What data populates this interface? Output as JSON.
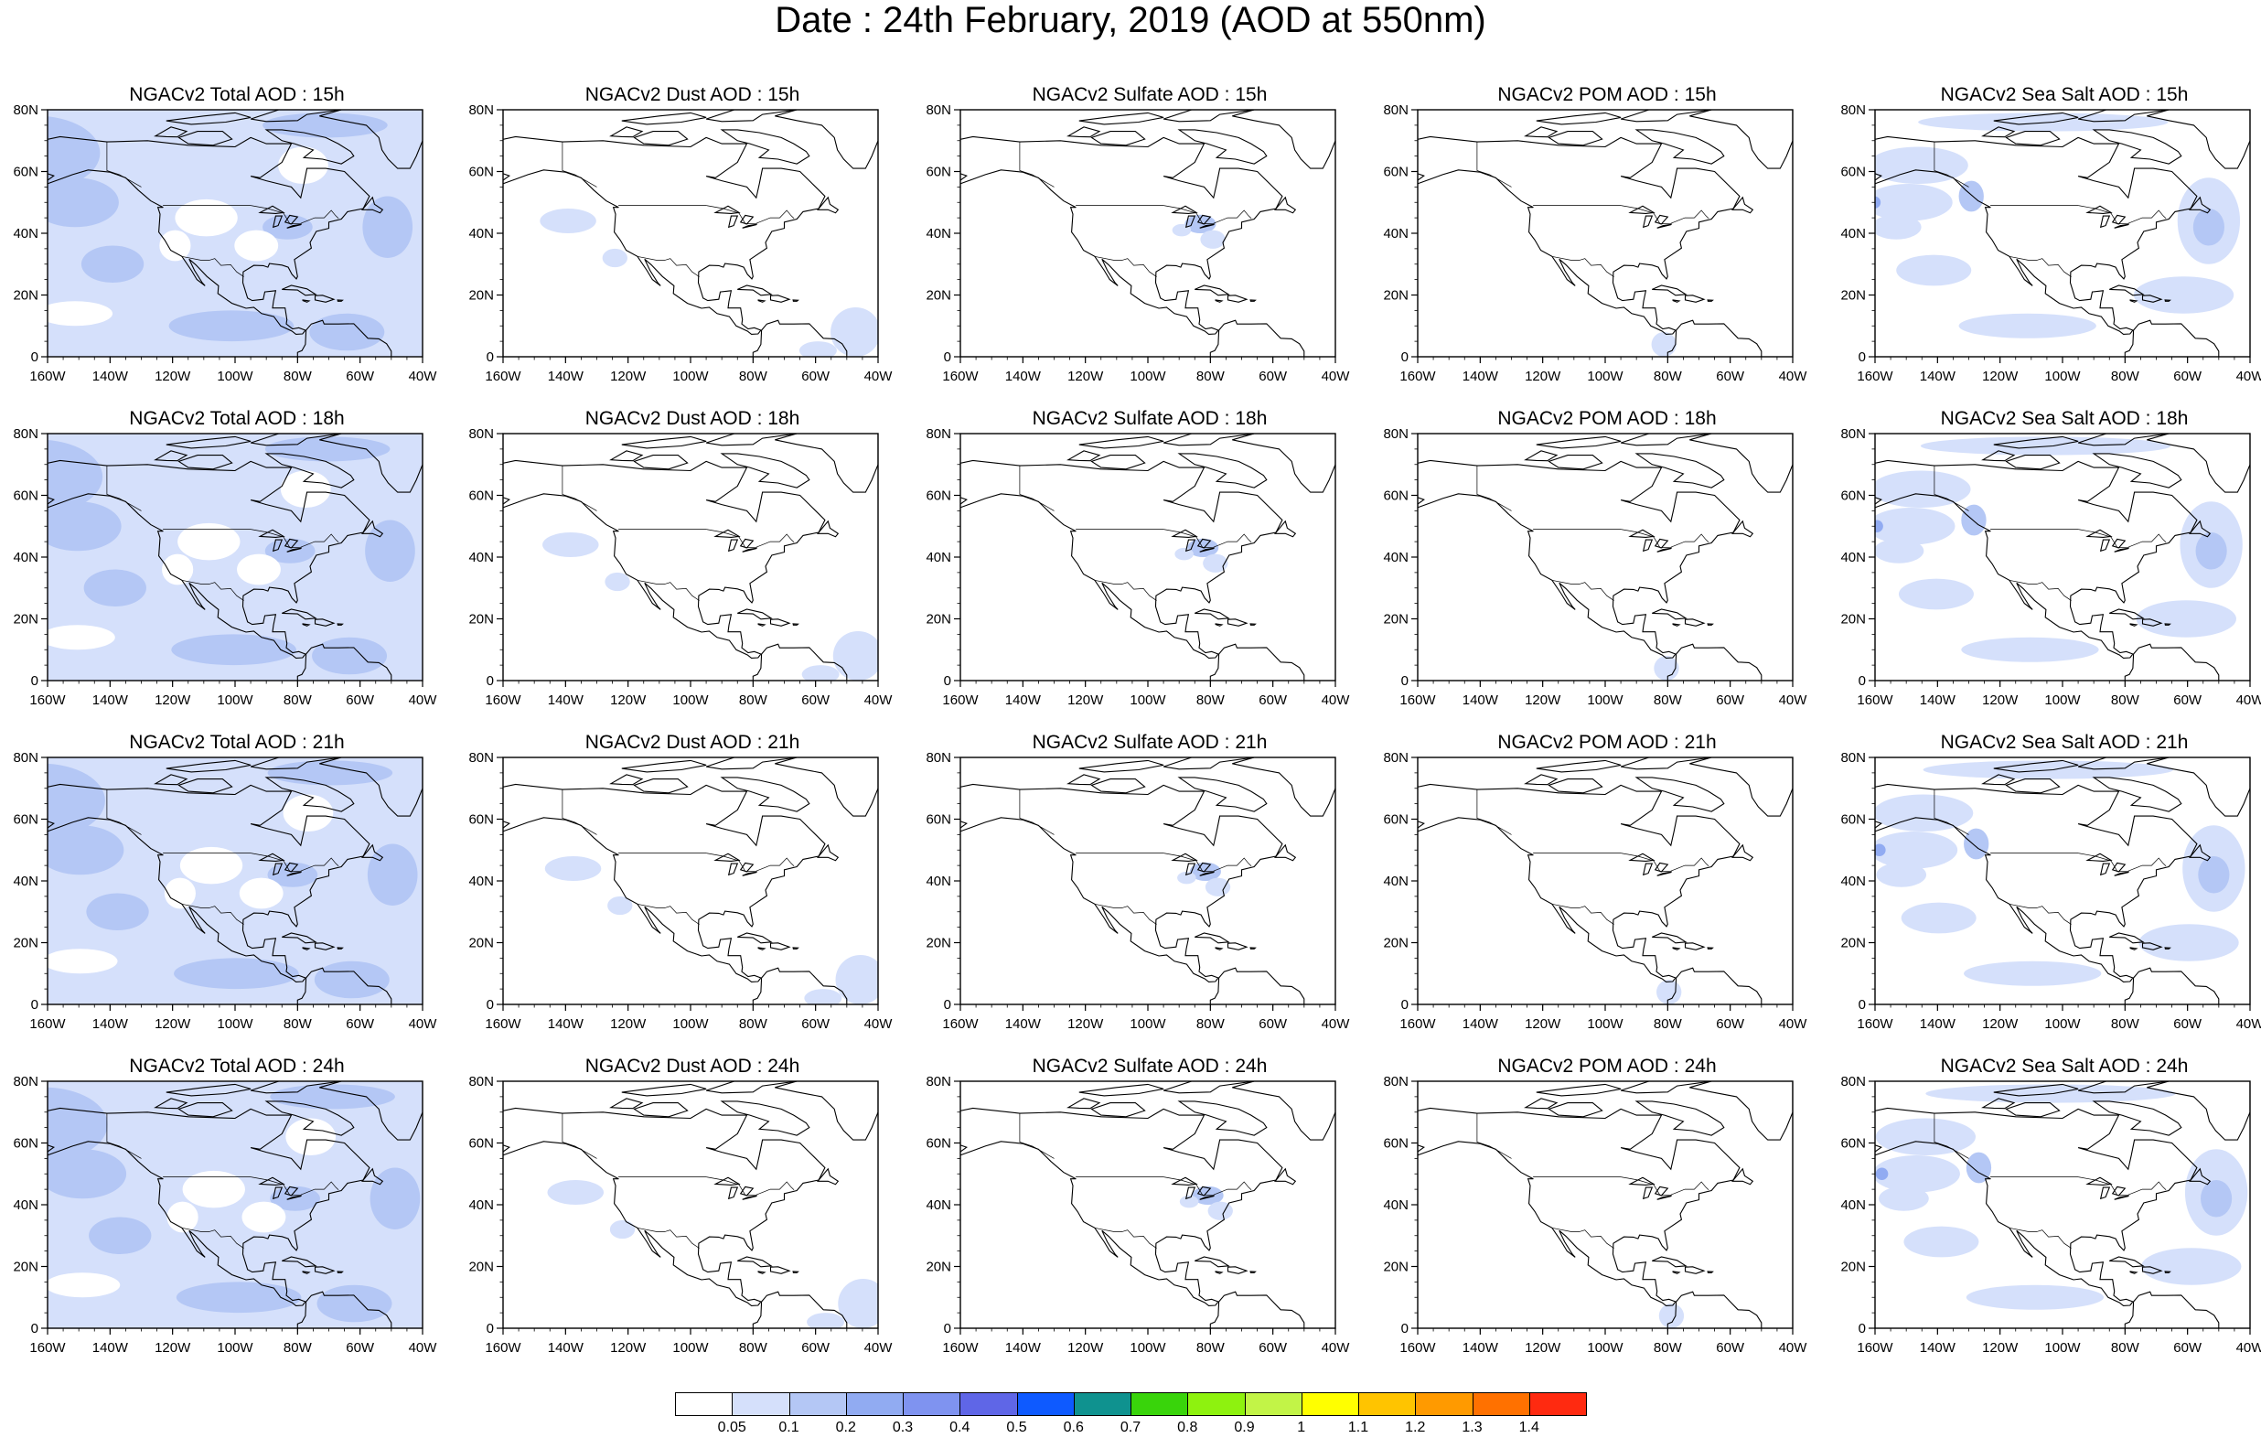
{
  "title": "Date : 24th February, 2019 (AOD at 550nm)",
  "panel_titles": [
    [
      "NGACv2 Total AOD : 15h",
      "NGACv2 Dust AOD : 15h",
      "NGACv2 Sulfate AOD : 15h",
      "NGACv2 POM AOD : 15h",
      "NGACv2 Sea Salt AOD : 15h"
    ],
    [
      "NGACv2 Total AOD : 18h",
      "NGACv2 Dust AOD : 18h",
      "NGACv2 Sulfate AOD : 18h",
      "NGACv2 POM AOD : 18h",
      "NGACv2 Sea Salt AOD : 18h"
    ],
    [
      "NGACv2 Total AOD : 21h",
      "NGACv2 Dust AOD : 21h",
      "NGACv2 Sulfate AOD : 21h",
      "NGACv2 POM AOD : 21h",
      "NGACv2 Sea Salt AOD : 21h"
    ],
    [
      "NGACv2 Total AOD : 24h",
      "NGACv2 Dust AOD : 24h",
      "NGACv2 Sulfate AOD : 24h",
      "NGACv2 POM AOD : 24h",
      "NGACv2 Sea Salt  AOD : 24h"
    ]
  ],
  "lat_labels": [
    "80N",
    "60N",
    "40N",
    "20N",
    "0"
  ],
  "lon_labels": [
    "160W",
    "140W",
    "120W",
    "100W",
    "80W",
    "60W",
    "40W"
  ],
  "map_extent": {
    "lon": [
      -160,
      -40
    ],
    "lat": [
      0,
      80
    ]
  },
  "colorbar": {
    "colors": [
      "#ffffff",
      "#d5e0fb",
      "#b4c7f5",
      "#91abf2",
      "#7f93f0",
      "#5f66e7",
      "#0e5aff",
      "#0f928f",
      "#39d40b",
      "#8ef20f",
      "#c2f447",
      "#ffff00",
      "#ffc400",
      "#ff9a00",
      "#ff7100",
      "#ff2a10"
    ],
    "labels": [
      "0.05",
      "0.1",
      "0.2",
      "0.3",
      "0.4",
      "0.5",
      "0.6",
      "0.7",
      "0.8",
      "0.9",
      "1",
      "1.1",
      "1.2",
      "1.3",
      "1.4"
    ]
  }
}
